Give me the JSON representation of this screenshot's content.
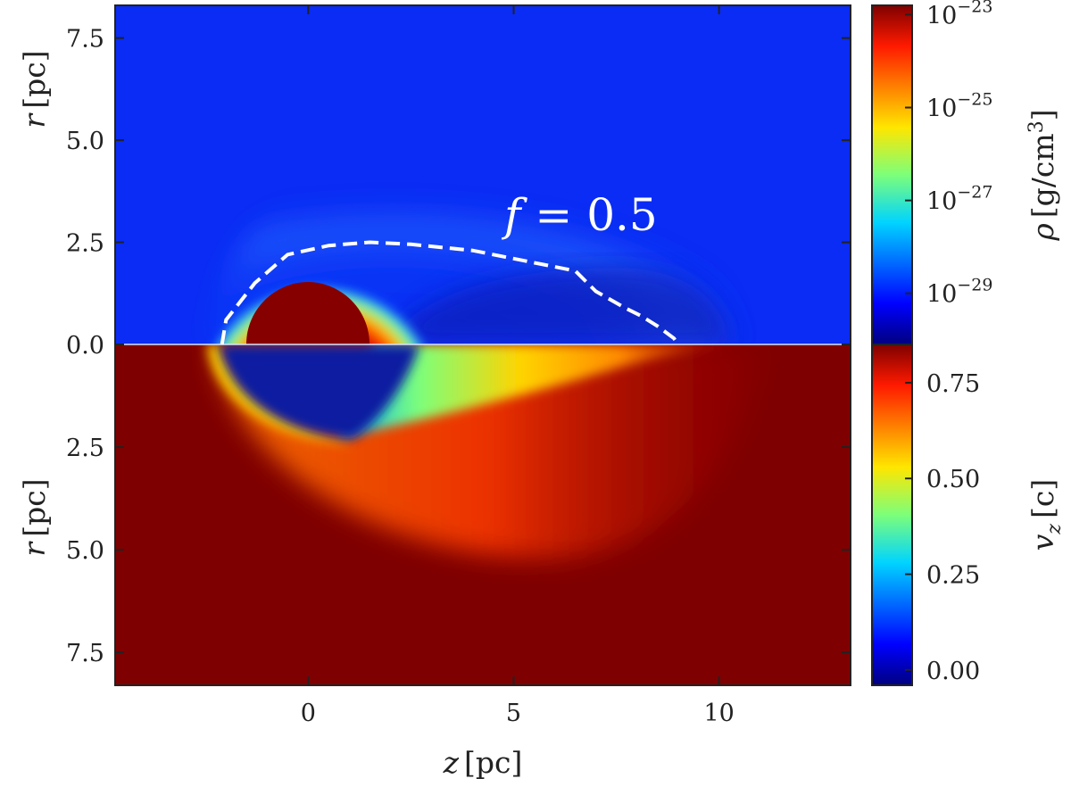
{
  "chart_data": {
    "type": "heatmap",
    "xlabel": "z [pc]",
    "xlim": [
      -4.7,
      13.2
    ],
    "x_ticks": [
      0,
      5,
      10
    ],
    "panels": [
      {
        "name": "density",
        "ylabel": "r [pc]",
        "ylim": [
          0,
          8.3
        ],
        "y_ticks": [
          "0.0",
          "2.5",
          "5.0",
          "7.5"
        ],
        "y_tick_values": [
          0,
          2.5,
          5.0,
          7.5
        ],
        "background": "#0a2cf4",
        "features": [
          {
            "kind": "dense-core",
            "center_z": 0,
            "radius_r": 1.5,
            "color": "#860000"
          },
          {
            "kind": "halo",
            "center_z": 0.4,
            "radius_r": 2.1,
            "color": "#36c8ff"
          },
          {
            "kind": "shell",
            "extent_z": [
              -2.2,
              10.5
            ],
            "max_r": 5.1,
            "color": "#2266ff"
          }
        ],
        "colorbar": {
          "label": "ρ [g/cm³]",
          "scale": "log",
          "ticks": [
            "10⁻²³",
            "10⁻²⁵",
            "10⁻²⁷",
            "10⁻²⁹"
          ],
          "tick_values": [
            -23,
            -25,
            -27,
            -29
          ],
          "range_log": [
            -30.1,
            -22.8
          ]
        },
        "contour": {
          "label": "f = 0.5",
          "style": "dashed",
          "color": "#ffffff",
          "points": [
            [
              -2.1,
              0
            ],
            [
              -2.0,
              0.6
            ],
            [
              -1.3,
              1.5
            ],
            [
              -0.5,
              2.2
            ],
            [
              0.5,
              2.42
            ],
            [
              1.5,
              2.5
            ],
            [
              2.5,
              2.45
            ],
            [
              4.0,
              2.3
            ],
            [
              6.5,
              1.8
            ],
            [
              7.0,
              1.3
            ],
            [
              7.7,
              0.9
            ],
            [
              8.1,
              0.7
            ],
            [
              8.5,
              0.45
            ],
            [
              8.9,
              0.15
            ],
            [
              9.0,
              0
            ]
          ]
        }
      },
      {
        "name": "velocity",
        "ylabel": "r [pc]",
        "ylim": [
          0,
          8.3
        ],
        "y_ticks": [
          "0.0",
          "2.5",
          "5.0",
          "7.5"
        ],
        "y_tick_values": [
          0,
          2.5,
          5.0,
          7.5
        ],
        "background": "#7f0000",
        "features": [
          {
            "kind": "bow-shock",
            "apex_z": -2.4,
            "color": "#ffdd00"
          },
          {
            "kind": "low-velocity-cavity",
            "extent_z": [
              -2.0,
              2.3
            ],
            "max_r": 2.3,
            "color": "#0a1ea0"
          },
          {
            "kind": "tail",
            "extent_z": [
              2.3,
              10.5
            ],
            "color": "#ff9d1a"
          }
        ],
        "colorbar": {
          "label": "v_z [c]",
          "scale": "linear",
          "ticks": [
            "0.75",
            "0.50",
            "0.25",
            "0.00"
          ],
          "tick_values": [
            0.75,
            0.5,
            0.25,
            0.0
          ],
          "range": [
            -0.04,
            0.85
          ]
        }
      }
    ]
  },
  "labels": {
    "xlabel_var": "z",
    "xlabel_unit": "[pc]",
    "ylabel_var": "r",
    "ylabel_unit": "[pc]",
    "annotation_var": "f",
    "annotation_rest": " = 0.5",
    "cb_top_var": "ρ",
    "cb_top_unit_a": "[g/cm",
    "cb_top_unit_sup": "3",
    "cb_top_unit_b": "]",
    "cb_bottom_var": "v",
    "cb_bottom_sub": "z",
    "cb_bottom_unit": "[c]",
    "x_tick_labels": [
      "0",
      "5",
      "10"
    ],
    "pow_base": "10",
    "pow_exps": [
      "−23",
      "−25",
      "−27",
      "−29"
    ]
  }
}
